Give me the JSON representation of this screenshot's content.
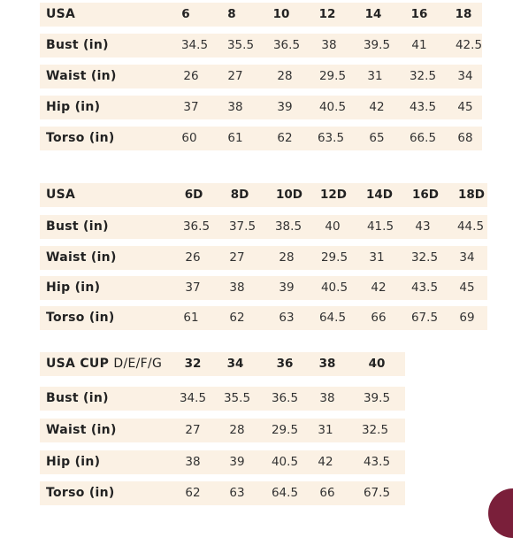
{
  "table1": {
    "header": [
      "USA",
      "6",
      "8",
      "10",
      "12",
      "14",
      "16",
      "18"
    ],
    "rows": [
      {
        "label": "Bust (in)",
        "values": [
          "34.5",
          "35.5",
          "36.5",
          "38",
          "39.5",
          "41",
          "42.5"
        ]
      },
      {
        "label": "Waist (in)",
        "values": [
          "26",
          "27",
          "28",
          "29.5",
          "31",
          "32.5",
          "34"
        ]
      },
      {
        "label": "Hip (in)",
        "values": [
          "37",
          "38",
          "39",
          "40.5",
          "42",
          "43.5",
          "45"
        ]
      },
      {
        "label": "Torso (in)",
        "values": [
          "60",
          "61",
          "62",
          "63.5",
          "65",
          "66.5",
          "68"
        ]
      }
    ]
  },
  "table2": {
    "header": [
      "USA",
      "6D",
      "8D",
      "10D",
      "12D",
      "14D",
      "16D",
      "18D"
    ],
    "rows": [
      {
        "label": "Bust (in)",
        "values": [
          "36.5",
          "37.5",
          "38.5",
          "40",
          "41.5",
          "43",
          "44.5"
        ]
      },
      {
        "label": "Waist (in)",
        "values": [
          "26",
          "27",
          "28",
          "29.5",
          "31",
          "32.5",
          "34"
        ]
      },
      {
        "label": "Hip (in)",
        "values": [
          "37",
          "38",
          "39",
          "40.5",
          "42",
          "43.5",
          "45"
        ]
      },
      {
        "label": "Torso (in)",
        "values": [
          "61",
          "62",
          "63",
          "64.5",
          "66",
          "67.5",
          "69"
        ]
      }
    ]
  },
  "table3": {
    "header_label": "USA CUP",
    "header_cups": "D/E/F/G",
    "header": [
      "32",
      "34",
      "36",
      "38",
      "40"
    ],
    "rows": [
      {
        "label": "Bust (in)",
        "values": [
          "34.5",
          "35.5",
          "36.5",
          "38",
          "39.5"
        ]
      },
      {
        "label": "Waist (in)",
        "values": [
          "27",
          "28",
          "29.5",
          "31",
          "32.5"
        ]
      },
      {
        "label": "Hip (in)",
        "values": [
          "38",
          "39",
          "40.5",
          "42",
          "43.5"
        ]
      },
      {
        "label": "Torso (in)",
        "values": [
          "62",
          "63",
          "64.5",
          "66",
          "67.5"
        ]
      }
    ]
  },
  "colors": {
    "row_background": "#fbf1e4",
    "text": "#222222",
    "corner_accent": "#7a1f3a"
  }
}
